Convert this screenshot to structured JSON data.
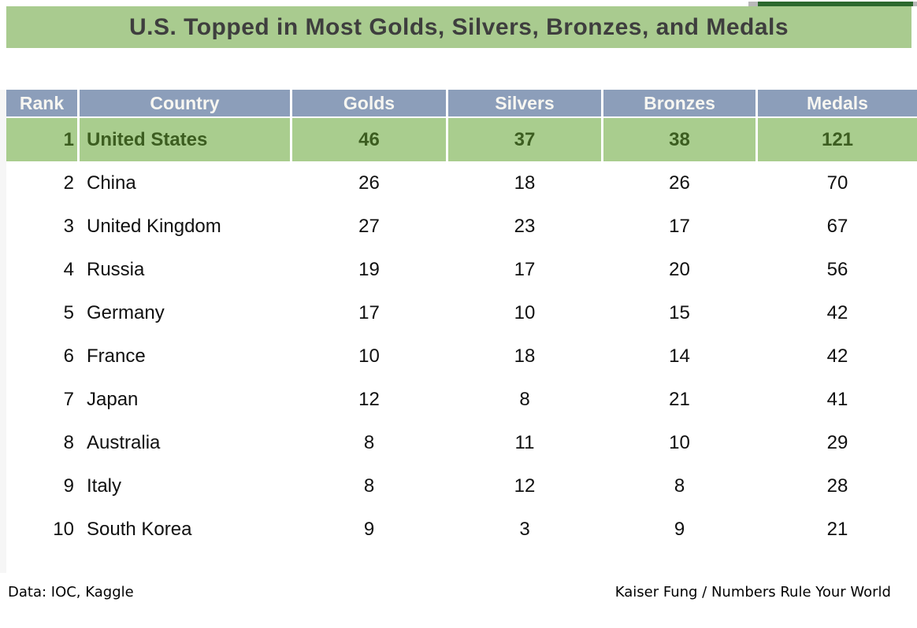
{
  "colors": {
    "title_bg": "#a9cb8f",
    "title_text": "#3e3e3e",
    "strip_green": "#2c682e",
    "strip_cap": "#b8b8b8",
    "header_bg": "#8c9eba",
    "header_text": "#f7f6f1",
    "row_highlight_bg": "#a9cd8e",
    "row_highlight_text": "#3c5d20",
    "body_text": "#101010"
  },
  "chart_data": {
    "type": "table",
    "title": "U.S. Topped in Most Golds, Silvers, Bronzes, and Medals",
    "columns": [
      "Rank",
      "Country",
      "Golds",
      "Silvers",
      "Bronzes",
      "Medals"
    ],
    "rows": [
      [
        1,
        "United States",
        46,
        37,
        38,
        121
      ],
      [
        2,
        "China",
        26,
        18,
        26,
        70
      ],
      [
        3,
        "United Kingdom",
        27,
        23,
        17,
        67
      ],
      [
        4,
        "Russia",
        19,
        17,
        20,
        56
      ],
      [
        5,
        "Germany",
        17,
        10,
        15,
        42
      ],
      [
        6,
        "France",
        10,
        18,
        14,
        42
      ],
      [
        7,
        "Japan",
        12,
        8,
        21,
        41
      ],
      [
        8,
        "Australia",
        8,
        11,
        10,
        29
      ],
      [
        9,
        "Italy",
        8,
        12,
        8,
        28
      ],
      [
        10,
        "South Korea",
        9,
        3,
        9,
        21
      ]
    ],
    "highlighted_rank": 1,
    "sources": {
      "left": "Data: IOC, Kaggle",
      "right": "Kaiser Fung / Numbers Rule Your World"
    }
  }
}
